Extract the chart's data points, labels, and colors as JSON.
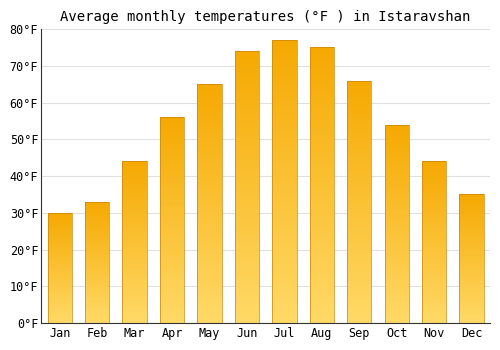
{
  "title": "Average monthly temperatures (°F ) in Istaravshan",
  "months": [
    "Jan",
    "Feb",
    "Mar",
    "Apr",
    "May",
    "Jun",
    "Jul",
    "Aug",
    "Sep",
    "Oct",
    "Nov",
    "Dec"
  ],
  "values": [
    30,
    33,
    44,
    56,
    65,
    74,
    77,
    75,
    66,
    54,
    44,
    35
  ],
  "bar_color_top": "#F5A800",
  "bar_color_bottom": "#FFD966",
  "ylim": [
    0,
    80
  ],
  "yticks": [
    0,
    10,
    20,
    30,
    40,
    50,
    60,
    70,
    80
  ],
  "ytick_labels": [
    "0°F",
    "10°F",
    "20°F",
    "30°F",
    "40°F",
    "50°F",
    "60°F",
    "70°F",
    "80°F"
  ],
  "background_color": "#FFFFFF",
  "grid_color": "#E0E0E0",
  "title_fontsize": 10,
  "tick_fontsize": 8.5,
  "bar_width": 0.65
}
